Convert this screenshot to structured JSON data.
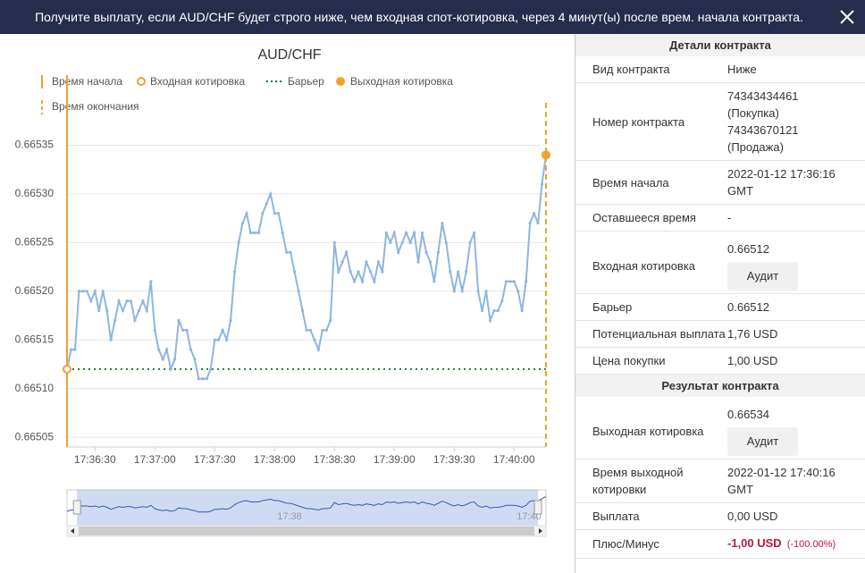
{
  "header": {
    "title": "Получите выплату, если AUD/CHF будет строго ниже, чем входная спот-котировка, через 4 минут(ы) после врем. начала контракта."
  },
  "chart_data": {
    "type": "line",
    "title": "AUD/CHF",
    "legend": [
      "Время начала",
      "Входная котировка",
      "Барьер",
      "Выходная котировка",
      "Время окончания"
    ],
    "xlim": [
      "17:36:16",
      "17:40:16"
    ],
    "xticks": [
      "17:36:30",
      "17:37:00",
      "17:37:30",
      "17:38:00",
      "17:38:30",
      "17:39:00",
      "17:39:30",
      "17:40:00"
    ],
    "ylim": [
      0.66504,
      0.6654
    ],
    "yticks": [
      0.66505,
      0.6651,
      0.66515,
      0.6652,
      0.66525,
      0.6653,
      0.66535
    ],
    "yticks_labels": [
      "0.66505",
      "0.66510",
      "0.66515",
      "0.66520",
      "0.66525",
      "0.66530",
      "0.66535"
    ],
    "grid": true,
    "start_time": "17:36:16",
    "end_time": "17:40:16",
    "entry_spot": 0.66512,
    "exit_spot": 0.66534,
    "barrier": 0.66512,
    "colors": {
      "line": "#8fb5e0",
      "marker": "#f0a22e",
      "barrier": "#1e7d2e"
    },
    "x": [
      "17:36:16",
      "17:36:18",
      "17:36:20",
      "17:36:22",
      "17:36:24",
      "17:36:26",
      "17:36:28",
      "17:36:30",
      "17:36:32",
      "17:36:34",
      "17:36:36",
      "17:36:38",
      "17:36:40",
      "17:36:42",
      "17:36:44",
      "17:36:46",
      "17:36:48",
      "17:36:50",
      "17:36:52",
      "17:36:54",
      "17:36:56",
      "17:36:58",
      "17:37:00",
      "17:37:02",
      "17:37:04",
      "17:37:06",
      "17:37:08",
      "17:37:10",
      "17:37:12",
      "17:37:14",
      "17:37:16",
      "17:37:18",
      "17:37:20",
      "17:37:22",
      "17:37:24",
      "17:37:26",
      "17:37:28",
      "17:37:30",
      "17:37:32",
      "17:37:34",
      "17:37:36",
      "17:37:38",
      "17:37:40",
      "17:37:42",
      "17:37:44",
      "17:37:46",
      "17:37:48",
      "17:37:50",
      "17:37:52",
      "17:37:54",
      "17:37:56",
      "17:37:58",
      "17:38:00",
      "17:38:02",
      "17:38:04",
      "17:38:06",
      "17:38:08",
      "17:38:10",
      "17:38:12",
      "17:38:14",
      "17:38:16",
      "17:38:18",
      "17:38:20",
      "17:38:22",
      "17:38:24",
      "17:38:26",
      "17:38:28",
      "17:38:30",
      "17:38:32",
      "17:38:34",
      "17:38:36",
      "17:38:38",
      "17:38:40",
      "17:38:42",
      "17:38:44",
      "17:38:46",
      "17:38:48",
      "17:38:50",
      "17:38:52",
      "17:38:54",
      "17:38:56",
      "17:38:58",
      "17:39:00",
      "17:39:02",
      "17:39:04",
      "17:39:06",
      "17:39:08",
      "17:39:10",
      "17:39:12",
      "17:39:14",
      "17:39:16",
      "17:39:18",
      "17:39:20",
      "17:39:22",
      "17:39:24",
      "17:39:26",
      "17:39:28",
      "17:39:30",
      "17:39:32",
      "17:39:34",
      "17:39:36",
      "17:39:38",
      "17:39:40",
      "17:39:42",
      "17:39:44",
      "17:39:46",
      "17:39:48",
      "17:39:50",
      "17:39:52",
      "17:39:54",
      "17:39:56",
      "17:39:58",
      "17:40:00",
      "17:40:02",
      "17:40:04",
      "17:40:06",
      "17:40:08",
      "17:40:10",
      "17:40:12",
      "17:40:14",
      "17:40:16"
    ],
    "series": [
      {
        "name": "AUD/CHF",
        "values": [
          0.66512,
          0.66514,
          0.66514,
          0.6652,
          0.6652,
          0.6652,
          0.66519,
          0.6652,
          0.66518,
          0.6652,
          0.66518,
          0.66515,
          0.66517,
          0.66519,
          0.66518,
          0.66519,
          0.66519,
          0.66517,
          0.66518,
          0.66519,
          0.66518,
          0.66521,
          0.66516,
          0.66514,
          0.66513,
          0.66514,
          0.66512,
          0.66513,
          0.66517,
          0.66516,
          0.66516,
          0.66514,
          0.66513,
          0.66511,
          0.66511,
          0.66511,
          0.66512,
          0.66515,
          0.66515,
          0.66516,
          0.66515,
          0.66517,
          0.66522,
          0.66525,
          0.66527,
          0.66528,
          0.66526,
          0.66526,
          0.66526,
          0.66528,
          0.66529,
          0.6653,
          0.66528,
          0.66528,
          0.66526,
          0.66524,
          0.66524,
          0.66522,
          0.6652,
          0.66518,
          0.66516,
          0.66516,
          0.66515,
          0.66514,
          0.66516,
          0.66516,
          0.66517,
          0.66525,
          0.66522,
          0.66523,
          0.66524,
          0.66522,
          0.66521,
          0.66522,
          0.66521,
          0.66523,
          0.66522,
          0.66521,
          0.66523,
          0.66522,
          0.66526,
          0.66525,
          0.66526,
          0.66524,
          0.66525,
          0.66526,
          0.66525,
          0.66526,
          0.66523,
          0.66526,
          0.66524,
          0.66523,
          0.66521,
          0.66524,
          0.66527,
          0.66525,
          0.66522,
          0.6652,
          0.66522,
          0.6652,
          0.66522,
          0.66525,
          0.66526,
          0.6652,
          0.66518,
          0.6652,
          0.66517,
          0.66518,
          0.66518,
          0.66519,
          0.66521,
          0.66521,
          0.66521,
          0.6652,
          0.66518,
          0.66521,
          0.66527,
          0.66528,
          0.66527,
          0.66531,
          0.66534
        ]
      }
    ],
    "navigator": {
      "labels": [
        {
          "time": "17:38",
          "at": "17:38:00"
        },
        {
          "time": "17:40",
          "at": "17:40:00"
        }
      ],
      "range": [
        "17:36:21",
        "17:40:12"
      ]
    }
  },
  "details": {
    "title": "Детали контракта",
    "rows": [
      {
        "label": [
          "Вид контракта"
        ],
        "value": [
          "Ниже"
        ]
      },
      {
        "label": [
          "Номер контракта"
        ],
        "value": [
          "74343434461",
          "(Покупка)",
          "74343670121",
          "(Продажа)"
        ]
      },
      {
        "label": [
          "Время начала"
        ],
        "value": [
          "2022-01-12 17:36:16",
          "GMT"
        ]
      },
      {
        "label": [
          "Оставшееся время"
        ],
        "value": [
          "-"
        ]
      },
      {
        "label": [
          "Входная котировка"
        ],
        "value": [
          "0.66512"
        ],
        "button": "Аудит"
      },
      {
        "label": [
          "Барьер"
        ],
        "value": [
          "0.66512"
        ]
      },
      {
        "label": [
          "Потенциальная выплата"
        ],
        "value": [
          "1,76 USD"
        ]
      },
      {
        "label": [
          "Цена покупки"
        ],
        "value": [
          "1,00 USD"
        ]
      }
    ]
  },
  "result": {
    "title": "Результат контракта",
    "rows": [
      {
        "label": [
          "Выходная котировка"
        ],
        "value": [
          "0.66534"
        ],
        "button": "Аудит"
      },
      {
        "label": [
          "Время выходной",
          "котировки"
        ],
        "value": [
          "2022-01-12 17:40:16",
          "GMT"
        ]
      },
      {
        "label": [
          "Выплата"
        ],
        "value": [
          "0,00 USD"
        ]
      },
      {
        "label": [
          "Плюс/Минус"
        ],
        "value": [
          "-1,00 USD"
        ],
        "note": "(-100.00%)"
      }
    ]
  }
}
